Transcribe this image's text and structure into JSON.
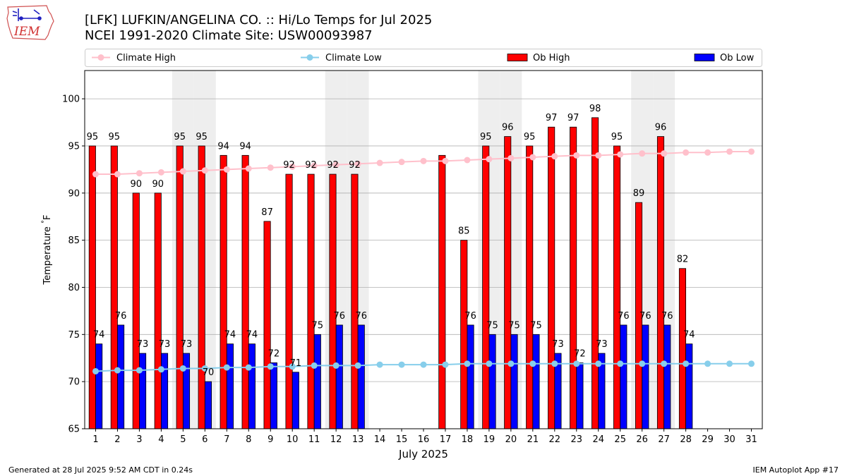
{
  "header": {
    "title_line1": "[LFK] LUFKIN/ANGELINA CO. :: Hi/Lo Temps for Jul 2025",
    "title_line2": "NCEI 1991-2020 Climate Site: USW00093987",
    "logo_text": "IEM"
  },
  "footer": {
    "generated": "Generated at 28 Jul 2025 9:52 AM CDT in 0.24s",
    "app": "IEM Autoplot App #17"
  },
  "colors": {
    "ob_high": "#ff0000",
    "ob_low": "#0000ff",
    "climate_high": "#ffc0cb",
    "climate_low": "#87ceeb",
    "weekend_shade": "#eeeeee",
    "grid": "#b0b0b0"
  },
  "chart_data": {
    "type": "bar",
    "xlabel": "July 2025",
    "ylabel": "Temperature $^\\circ$F",
    "ylim": [
      65,
      103
    ],
    "yticks": [
      65,
      70,
      75,
      80,
      85,
      90,
      95,
      100
    ],
    "grid": "horizontal",
    "legend_position": "top",
    "legend": [
      {
        "name": "Climate High",
        "kind": "line"
      },
      {
        "name": "Climate Low",
        "kind": "line"
      },
      {
        "name": "Ob High",
        "kind": "bar"
      },
      {
        "name": "Ob Low",
        "kind": "bar"
      }
    ],
    "days": [
      1,
      2,
      3,
      4,
      5,
      6,
      7,
      8,
      9,
      10,
      11,
      12,
      13,
      14,
      15,
      16,
      17,
      18,
      19,
      20,
      21,
      22,
      23,
      24,
      25,
      26,
      27,
      28,
      29,
      30,
      31
    ],
    "weekend_days": [
      5,
      6,
      12,
      13,
      19,
      20,
      26,
      27
    ],
    "ob_high": [
      95,
      95,
      90,
      90,
      95,
      95,
      94,
      94,
      87,
      92,
      92,
      92,
      92,
      null,
      null,
      null,
      94,
      85,
      95,
      96,
      95,
      97,
      97,
      98,
      95,
      89,
      96,
      82,
      null,
      null,
      null
    ],
    "ob_high_labels": [
      "95",
      "95",
      "90",
      "90",
      "95",
      "95",
      "94",
      "94",
      "87",
      "92",
      "92",
      "92",
      "92",
      "",
      "",
      "",
      "",
      "85",
      "95",
      "96",
      "95",
      "97",
      "97",
      "98",
      "95",
      "89",
      "96",
      "82",
      "",
      "",
      ""
    ],
    "ob_low": [
      74,
      76,
      73,
      73,
      73,
      70,
      74,
      74,
      72,
      71,
      75,
      76,
      76,
      null,
      null,
      null,
      null,
      76,
      75,
      75,
      75,
      73,
      72,
      73,
      76,
      76,
      76,
      74,
      null,
      null,
      null
    ],
    "ob_low_labels": [
      "74",
      "76",
      "73",
      "73",
      "73",
      "70",
      "74",
      "74",
      "72",
      "71",
      "75",
      "76",
      "76",
      "",
      "",
      "",
      "",
      "76",
      "75",
      "75",
      "75",
      "73",
      "72",
      "73",
      "76",
      "76",
      "76",
      "74",
      "",
      "",
      ""
    ],
    "climate_high": [
      92.0,
      92.0,
      92.1,
      92.2,
      92.3,
      92.4,
      92.5,
      92.6,
      92.7,
      92.8,
      92.9,
      93.0,
      93.1,
      93.2,
      93.3,
      93.4,
      93.4,
      93.5,
      93.6,
      93.7,
      93.8,
      93.9,
      94.0,
      94.0,
      94.1,
      94.2,
      94.2,
      94.3,
      94.3,
      94.4,
      94.4
    ],
    "climate_low": [
      71.1,
      71.2,
      71.2,
      71.3,
      71.4,
      71.4,
      71.5,
      71.5,
      71.6,
      71.6,
      71.7,
      71.7,
      71.7,
      71.8,
      71.8,
      71.8,
      71.8,
      71.9,
      71.9,
      71.9,
      71.9,
      71.9,
      71.9,
      71.9,
      71.9,
      71.9,
      71.9,
      71.9,
      71.9,
      71.9,
      71.9
    ]
  }
}
